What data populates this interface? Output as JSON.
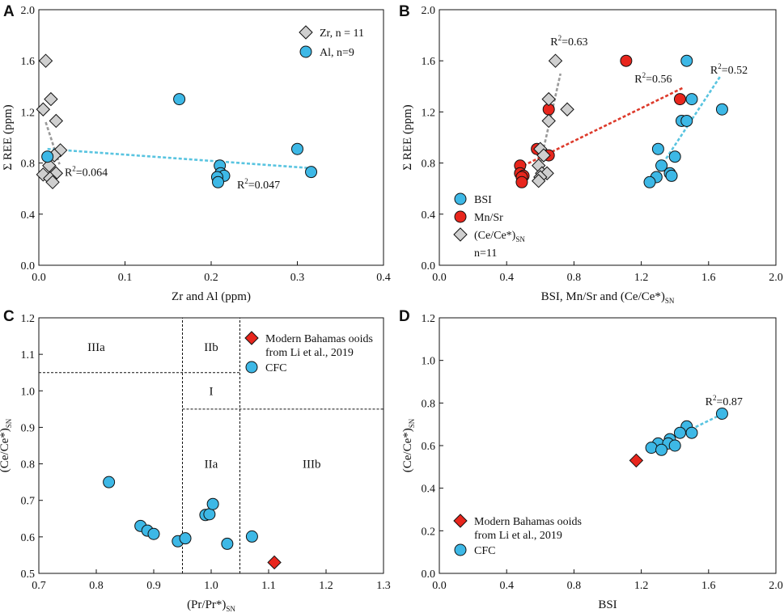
{
  "colors": {
    "cyan": "#3db8e6",
    "red": "#e8261d",
    "gray": "#cfcfcf",
    "cyan_line": "#59c4e0",
    "red_line": "#dd3a2b",
    "gray_line": "#9a9a9a"
  },
  "chart_data": [
    {
      "panel": "A",
      "type": "scatter",
      "xlabel": "Zr and Al (ppm)",
      "ylabel": "Σ REE (ppm)",
      "xlim": [
        0,
        0.4
      ],
      "ylim": [
        0,
        2.0
      ],
      "xticks": [
        "0.0",
        "0.1",
        "0.2",
        "0.3",
        "0.4"
      ],
      "yticks": [
        "0.0",
        "0.4",
        "0.8",
        "1.2",
        "1.6",
        "2.0"
      ],
      "legend_position": "top-right",
      "series": [
        {
          "name": "Zr, n = 11",
          "marker": "diamond",
          "color": "gray",
          "points": [
            [
              0.008,
              1.6
            ],
            [
              0.014,
              1.3
            ],
            [
              0.005,
              1.22
            ],
            [
              0.02,
              1.13
            ],
            [
              0.025,
              0.9
            ],
            [
              0.018,
              0.86
            ],
            [
              0.012,
              0.78
            ],
            [
              0.02,
              0.72
            ],
            [
              0.005,
              0.71
            ],
            [
              0.013,
              0.68
            ],
            [
              0.016,
              0.65
            ]
          ]
        },
        {
          "name": "Al, n=9",
          "marker": "circle",
          "color": "cyan",
          "points": [
            [
              0.163,
              1.3
            ],
            [
              0.3,
              0.91
            ],
            [
              0.01,
              0.85
            ],
            [
              0.21,
              0.78
            ],
            [
              0.211,
              0.72
            ],
            [
              0.316,
              0.73
            ],
            [
              0.215,
              0.7
            ],
            [
              0.207,
              0.69
            ],
            [
              0.208,
              0.65
            ]
          ]
        }
      ],
      "trendlines": [
        {
          "color": "gray_line",
          "from": [
            0.008,
            1.12
          ],
          "to": [
            0.024,
            0.79
          ]
        },
        {
          "color": "cyan_line",
          "from": [
            0.01,
            0.91
          ],
          "to": [
            0.316,
            0.76
          ]
        }
      ],
      "annotations": [
        {
          "r2": "0.064",
          "x": 0.03,
          "y": 0.7
        },
        {
          "r2": "0.047",
          "x": 0.23,
          "y": 0.6
        }
      ]
    },
    {
      "panel": "B",
      "type": "scatter",
      "xlabel": "BSI, Mn/Sr and (Ce/Ce*)",
      "xlabel_sub": "SN",
      "ylabel": "Σ REE (ppm)",
      "xlim": [
        0,
        2.0
      ],
      "ylim": [
        0,
        2.0
      ],
      "xticks": [
        "0.0",
        "0.4",
        "0.8",
        "1.2",
        "1.6",
        "2.0"
      ],
      "yticks": [
        "0.0",
        "0.4",
        "0.8",
        "1.2",
        "1.6",
        "2.0"
      ],
      "legend_position": "bottom-left",
      "series": [
        {
          "name": "BSI",
          "marker": "circle",
          "color": "cyan",
          "points": [
            [
              1.47,
              1.6
            ],
            [
              1.68,
              1.22
            ],
            [
              1.5,
              1.3
            ],
            [
              1.44,
              1.13
            ],
            [
              1.47,
              1.13
            ],
            [
              1.3,
              0.91
            ],
            [
              1.4,
              0.85
            ],
            [
              1.32,
              0.78
            ],
            [
              1.37,
              0.72
            ],
            [
              1.38,
              0.7
            ],
            [
              1.29,
              0.69
            ],
            [
              1.25,
              0.65
            ]
          ]
        },
        {
          "name": "Mn/Sr",
          "marker": "circle",
          "color": "red",
          "points": [
            [
              1.11,
              1.6
            ],
            [
              1.43,
              1.3
            ],
            [
              0.65,
              1.22
            ],
            [
              0.58,
              0.91
            ],
            [
              0.65,
              0.86
            ],
            [
              0.48,
              0.78
            ],
            [
              0.48,
              0.72
            ],
            [
              0.5,
              0.7
            ],
            [
              0.49,
              0.69
            ],
            [
              0.49,
              0.65
            ]
          ]
        },
        {
          "name": "(Ce/Ce*)",
          "name_sub": "SN",
          "name_extra": "n=11",
          "marker": "diamond",
          "color": "gray",
          "points": [
            [
              0.69,
              1.6
            ],
            [
              0.65,
              1.3
            ],
            [
              0.76,
              1.22
            ],
            [
              0.65,
              1.13
            ],
            [
              0.6,
              0.91
            ],
            [
              0.62,
              0.86
            ],
            [
              0.59,
              0.78
            ],
            [
              0.61,
              0.72
            ],
            [
              0.64,
              0.72
            ],
            [
              0.6,
              0.69
            ],
            [
              0.59,
              0.66
            ]
          ]
        }
      ],
      "trendlines": [
        {
          "color": "gray_line",
          "from": [
            0.6,
            0.8
          ],
          "to": [
            0.72,
            1.5
          ]
        },
        {
          "color": "red_line",
          "from": [
            0.5,
            0.78
          ],
          "to": [
            1.45,
            1.39
          ]
        },
        {
          "color": "cyan_line",
          "from": [
            1.33,
            0.8
          ],
          "to": [
            1.67,
            1.48
          ]
        }
      ],
      "annotations": [
        {
          "r2": "0.63",
          "x": 0.66,
          "y": 1.72
        },
        {
          "r2": "0.56",
          "x": 1.16,
          "y": 1.43
        },
        {
          "r2": "0.52",
          "x": 1.61,
          "y": 1.5
        }
      ]
    },
    {
      "panel": "C",
      "type": "scatter",
      "xlabel": "(Pr/Pr*)",
      "xlabel_sub": "SN",
      "ylabel": "(Ce/Ce*)",
      "ylabel_sub": "SN",
      "xlim": [
        0.7,
        1.3
      ],
      "ylim": [
        0.5,
        1.2
      ],
      "xticks": [
        "0.7",
        "0.8",
        "0.9",
        "1.0",
        "1.1",
        "1.2",
        "1.3"
      ],
      "yticks": [
        "0.5",
        "0.6",
        "0.7",
        "0.8",
        "0.9",
        "1.0",
        "1.1",
        "1.2"
      ],
      "legend_position": "top-right",
      "series": [
        {
          "name": "Modern Bahamas ooids",
          "name_line2": "from Li et al., 2019",
          "marker": "diamond",
          "color": "red",
          "points": [
            [
              1.11,
              0.53
            ]
          ]
        },
        {
          "name": "CFC",
          "marker": "circle",
          "color": "cyan",
          "points": [
            [
              0.822,
              0.75
            ],
            [
              0.877,
              0.63
            ],
            [
              0.889,
              0.617
            ],
            [
              0.9,
              0.608
            ],
            [
              0.942,
              0.588
            ],
            [
              0.955,
              0.596
            ],
            [
              0.99,
              0.66
            ],
            [
              0.997,
              0.662
            ],
            [
              1.003,
              0.69
            ],
            [
              1.028,
              0.581
            ],
            [
              1.071,
              0.601
            ]
          ]
        }
      ],
      "region_lines": [
        {
          "from": [
            0.95,
            0.5
          ],
          "to": [
            0.95,
            1.2
          ]
        },
        {
          "from": [
            1.05,
            0.5
          ],
          "to": [
            1.05,
            1.2
          ]
        },
        {
          "from": [
            0.7,
            1.05
          ],
          "to": [
            1.05,
            1.05
          ]
        },
        {
          "from": [
            0.95,
            0.95
          ],
          "to": [
            1.3,
            0.95
          ]
        }
      ],
      "regions": [
        {
          "label": "IIIa",
          "x": 0.8,
          "y": 1.12
        },
        {
          "label": "IIb",
          "x": 1.0,
          "y": 1.12
        },
        {
          "label": "I",
          "x": 1.0,
          "y": 1.0
        },
        {
          "label": "IIa",
          "x": 1.0,
          "y": 0.8
        },
        {
          "label": "IIIb",
          "x": 1.175,
          "y": 0.8
        }
      ]
    },
    {
      "panel": "D",
      "type": "scatter",
      "xlabel": "BSI",
      "ylabel": "(Ce/Ce*)",
      "ylabel_sub": "SN",
      "xlim": [
        0,
        2.0
      ],
      "ylim": [
        0,
        1.2
      ],
      "xticks": [
        "0.0",
        "0.4",
        "0.8",
        "1.2",
        "1.6",
        "2.0"
      ],
      "yticks": [
        "0.0",
        "0.2",
        "0.4",
        "0.6",
        "0.8",
        "1.0",
        "1.2"
      ],
      "legend_position": "bottom-left",
      "series": [
        {
          "name": "Modern Bahamas ooids",
          "name_line2": "from Li et al., 2019",
          "marker": "diamond",
          "color": "red",
          "points": [
            [
              1.17,
              0.53
            ]
          ]
        },
        {
          "name": "CFC",
          "marker": "circle",
          "color": "cyan",
          "points": [
            [
              1.68,
              0.75
            ],
            [
              1.47,
              0.69
            ],
            [
              1.43,
              0.66
            ],
            [
              1.5,
              0.66
            ],
            [
              1.37,
              0.63
            ],
            [
              1.3,
              0.61
            ],
            [
              1.36,
              0.61
            ],
            [
              1.4,
              0.6
            ],
            [
              1.26,
              0.59
            ],
            [
              1.32,
              0.58
            ]
          ]
        }
      ],
      "trendlines": [
        {
          "color": "cyan_line",
          "from": [
            1.27,
            0.59
          ],
          "to": [
            1.66,
            0.74
          ]
        }
      ],
      "annotations": [
        {
          "r2": "0.87",
          "x": 1.58,
          "y": 0.79
        }
      ]
    }
  ]
}
